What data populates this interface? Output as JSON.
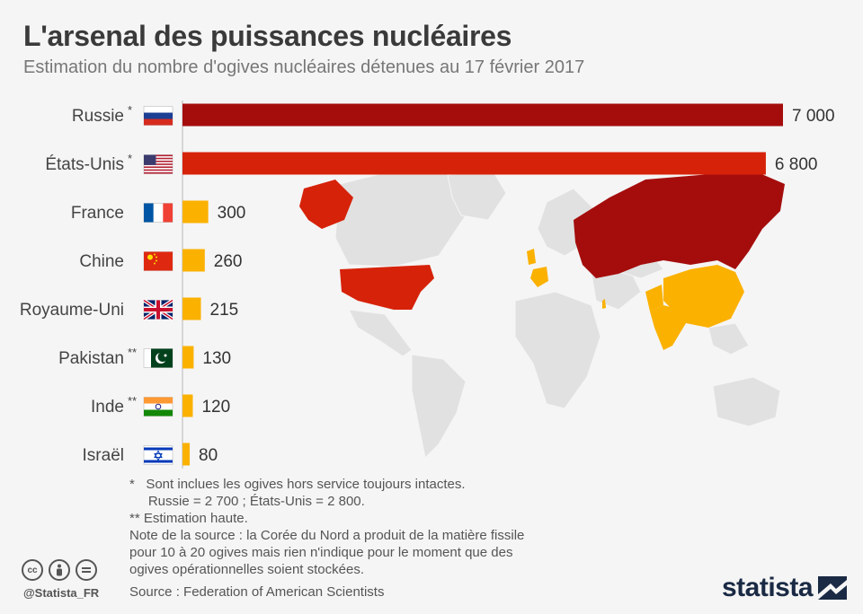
{
  "title": "L'arsenal des puissances nucléaires",
  "subtitle": "Estimation du nombre d'ogives nucléaires détenues au 17 février 2017",
  "chart_data": {
    "type": "bar",
    "orientation": "horizontal",
    "categories": [
      "Russie",
      "États-Unis",
      "France",
      "Chine",
      "Royaume-Uni",
      "Pakistan",
      "Inde",
      "Israël"
    ],
    "markers": [
      "*",
      "*",
      "",
      "",
      "",
      "**",
      "**",
      ""
    ],
    "values": [
      7000,
      6800,
      300,
      260,
      215,
      130,
      120,
      80
    ],
    "value_labels": [
      "7 000",
      "6 800",
      "300",
      "260",
      "215",
      "130",
      "120",
      "80"
    ],
    "colors": [
      "#a50d0d",
      "#d62209",
      "#fbb100",
      "#fbb100",
      "#fbb100",
      "#fbb100",
      "#fbb100",
      "#fbb100"
    ],
    "xlim": [
      0,
      7000
    ],
    "grid": false,
    "title": "L'arsenal des puissances nucléaires",
    "xlabel": "",
    "ylabel": ""
  },
  "notes": [
    "*   Sont inclues les ogives hors service toujours intactes.",
    "     Russie = 2 700 ; États-Unis = 2 800.",
    "** Estimation haute.",
    "Note de la source : la Corée du Nord a produit de la matière fissile",
    "pour 10 à 20 ogives mais rien n'indique pour le moment que des",
    "ogives opérationnelles soient stockées."
  ],
  "source": "Source : Federation of American Scientists",
  "handle": "@Statista_FR",
  "brand": "statista",
  "icons": [
    "cc-icon",
    "by-icon",
    "nd-icon",
    "statista-logo-icon"
  ],
  "map_colors": {
    "land": "#e1e1e1",
    "russia": "#a50d0d",
    "usa": "#d62209",
    "others": "#fbb100"
  }
}
